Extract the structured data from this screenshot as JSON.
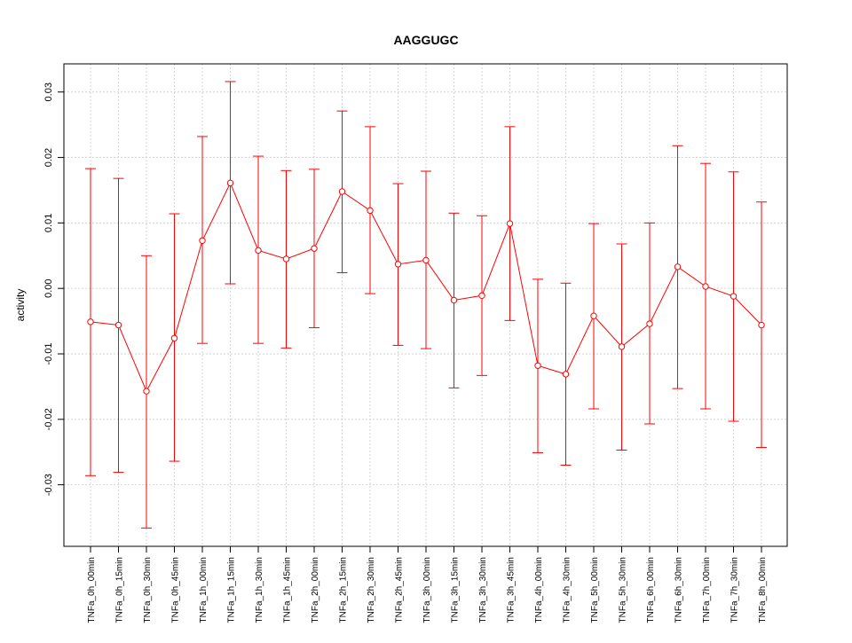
{
  "chart_data": {
    "type": "line",
    "title": "AAGGUGC",
    "xlabel": "",
    "ylabel": "activity",
    "ylim": [
      -0.0394,
      0.0343
    ],
    "yticks": [
      -0.03,
      -0.02,
      -0.01,
      0.0,
      0.01,
      0.02,
      0.03
    ],
    "ytick_labels": [
      "-0.03",
      "-0.02",
      "-0.01",
      "0.00",
      "0.01",
      "0.02",
      "0.03"
    ],
    "grid": true,
    "color": "#ff0000",
    "categories": [
      "TNFa_0h_00min",
      "TNFa_0h_15min",
      "TNFa_0h_30min",
      "TNFa_0h_45min",
      "TNFa_1h_00min",
      "TNFa_1h_15min",
      "TNFa_1h_30min",
      "TNFa_1h_45min",
      "TNFa_2h_00min",
      "TNFa_2h_15min",
      "TNFa_2h_30min",
      "TNFa_2h_45min",
      "TNFa_3h_00min",
      "TNFa_3h_15min",
      "TNFa_3h_30min",
      "TNFa_3h_45min",
      "TNFa_4h_00min",
      "TNFa_4h_30min",
      "TNFa_5h_00min",
      "TNFa_5h_30min",
      "TNFa_6h_00min",
      "TNFa_6h_30min",
      "TNFa_7h_00min",
      "TNFa_7h_30min",
      "TNFa_8h_00min"
    ],
    "values": [
      -0.0051,
      -0.0056,
      -0.0157,
      -0.0076,
      0.0073,
      0.0161,
      0.0058,
      0.0045,
      0.0061,
      0.0148,
      0.0119,
      0.0037,
      0.0043,
      -0.0018,
      -0.0011,
      0.0099,
      -0.0118,
      -0.0131,
      -0.0042,
      -0.0089,
      -0.0054,
      0.0033,
      0.0003,
      -0.0012,
      -0.0056
    ],
    "upper": [
      0.0183,
      0.0168,
      0.005,
      0.0114,
      0.0232,
      0.0316,
      0.0202,
      0.018,
      0.0182,
      0.0271,
      0.0247,
      0.016,
      0.0179,
      0.0115,
      0.0111,
      0.0247,
      0.0014,
      0.0008,
      0.0099,
      0.0068,
      0.01,
      0.0218,
      0.0191,
      0.0178,
      0.0132
    ],
    "lower": [
      -0.0286,
      -0.0281,
      -0.0366,
      -0.0264,
      -0.0084,
      0.0007,
      -0.0084,
      -0.0091,
      -0.006,
      0.0024,
      -0.0008,
      -0.0087,
      -0.0092,
      -0.0152,
      -0.0133,
      -0.0049,
      -0.0251,
      -0.027,
      -0.0184,
      -0.0247,
      -0.0207,
      -0.0153,
      -0.0184,
      -0.0203,
      -0.0243
    ]
  }
}
